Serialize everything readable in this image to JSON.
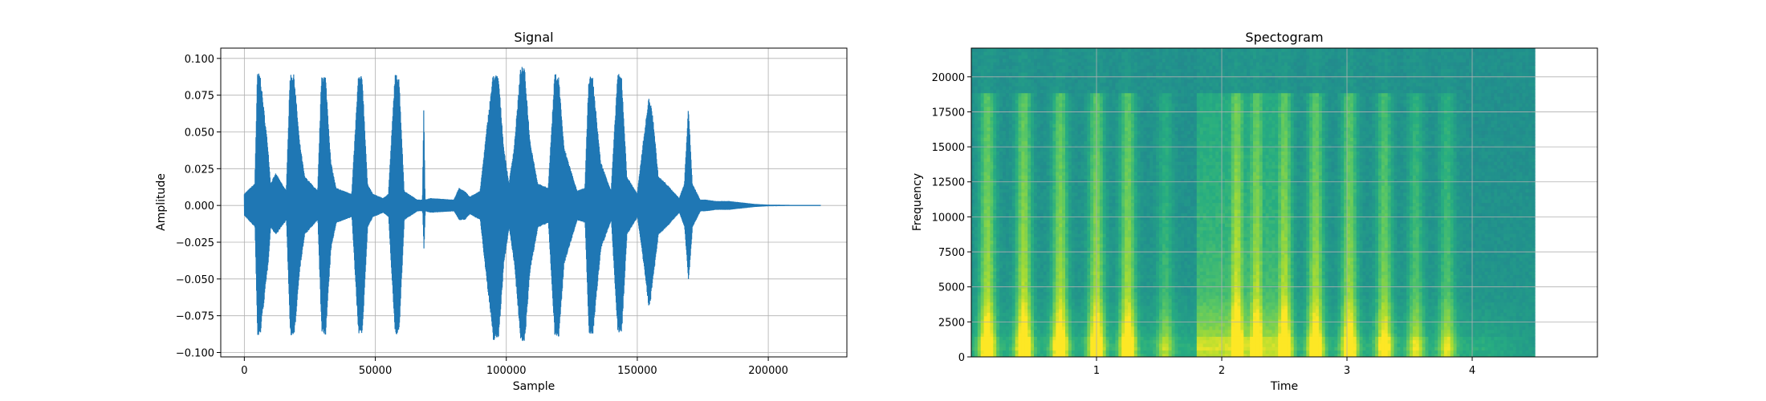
{
  "chart_data": [
    {
      "type": "line",
      "title": "Signal",
      "xlabel": "Sample",
      "ylabel": "Amplitude",
      "xlim": [
        -9000,
        230000
      ],
      "ylim": [
        -0.103,
        0.107
      ],
      "xticks": [
        0,
        50000,
        100000,
        150000,
        200000
      ],
      "xtick_labels": [
        "0",
        "50000",
        "100000",
        "150000",
        "200000"
      ],
      "yticks": [
        -0.1,
        -0.075,
        -0.05,
        -0.025,
        0.0,
        0.025,
        0.05,
        0.075,
        0.1
      ],
      "ytick_labels": [
        "−0.100",
        "−0.075",
        "−0.050",
        "−0.025",
        "0.000",
        "0.025",
        "0.050",
        "0.075",
        "0.100"
      ],
      "grid": true,
      "color": "#1f77b4",
      "series": [
        {
          "envelope": {
            "x": [
              0,
              4000,
              5000,
              6000,
              9000,
              10000,
              12000,
              16000,
              17500,
              19000,
              21000,
              23000,
              28000,
              29500,
              31000,
              33000,
              35000,
              41000,
              43500,
              45000,
              47000,
              49000,
              53000,
              55000,
              57500,
              59000,
              61000,
              66000,
              68000,
              68500,
              69000,
              71000,
              80000,
              82000,
              84000,
              86000,
              90000,
              93000,
              95000,
              97000,
              99000,
              101000,
              103000,
              105500,
              107000,
              109000,
              112000,
              116000,
              118500,
              120000,
              122000,
              127000,
              130000,
              131500,
              133000,
              136000,
              140000,
              142500,
              144000,
              146000,
              150000,
              152000,
              154500,
              156000,
              158000,
              161000,
              166000,
              168000,
              169500,
              171000,
              174000,
              176000,
              180000,
              185000,
              190000,
              195000,
              200000,
              210000,
              220000
            ],
            "top": [
              0.008,
              0.015,
              0.09,
              0.09,
              0.04,
              0.015,
              0.022,
              0.01,
              0.09,
              0.089,
              0.045,
              0.02,
              0.01,
              0.09,
              0.088,
              0.03,
              0.012,
              0.008,
              0.088,
              0.088,
              0.015,
              0.008,
              0.005,
              0.008,
              0.089,
              0.089,
              0.01,
              0.004,
              0.004,
              0.069,
              0.004,
              0.005,
              0.004,
              0.012,
              0.01,
              0.006,
              0.01,
              0.06,
              0.09,
              0.088,
              0.04,
              0.015,
              0.04,
              0.095,
              0.093,
              0.045,
              0.015,
              0.012,
              0.09,
              0.088,
              0.04,
              0.01,
              0.012,
              0.088,
              0.087,
              0.03,
              0.01,
              0.09,
              0.088,
              0.02,
              0.008,
              0.04,
              0.075,
              0.06,
              0.02,
              0.015,
              0.005,
              0.015,
              0.068,
              0.015,
              0.004,
              0.004,
              0.003,
              0.003,
              0.002,
              0.001,
              0.0005,
              0.0003,
              0.0003
            ],
            "bottom": [
              -0.007,
              -0.015,
              -0.09,
              -0.089,
              -0.04,
              -0.015,
              -0.02,
              -0.01,
              -0.088,
              -0.09,
              -0.045,
              -0.02,
              -0.01,
              -0.088,
              -0.088,
              -0.03,
              -0.012,
              -0.008,
              -0.087,
              -0.087,
              -0.015,
              -0.008,
              -0.005,
              -0.008,
              -0.088,
              -0.088,
              -0.01,
              -0.004,
              -0.004,
              -0.031,
              -0.004,
              -0.005,
              -0.004,
              -0.01,
              -0.01,
              -0.006,
              -0.01,
              -0.06,
              -0.092,
              -0.09,
              -0.04,
              -0.015,
              -0.04,
              -0.093,
              -0.092,
              -0.045,
              -0.015,
              -0.012,
              -0.09,
              -0.09,
              -0.04,
              -0.01,
              -0.012,
              -0.087,
              -0.088,
              -0.03,
              -0.01,
              -0.087,
              -0.086,
              -0.02,
              -0.008,
              -0.035,
              -0.072,
              -0.05,
              -0.02,
              -0.015,
              -0.005,
              -0.015,
              -0.052,
              -0.015,
              -0.004,
              -0.004,
              -0.003,
              -0.003,
              -0.002,
              -0.001,
              -0.0005,
              -0.0003,
              -0.0003
            ]
          }
        }
      ]
    },
    {
      "type": "heatmap",
      "title": "Spectogram",
      "xlabel": "Time",
      "ylabel": "Frequency",
      "xlim": [
        0.0,
        5.0
      ],
      "ylim": [
        0,
        22050
      ],
      "data_extent_x": [
        0.0,
        4.5
      ],
      "xticks": [
        1,
        2,
        3,
        4
      ],
      "xtick_labels": [
        "1",
        "2",
        "3",
        "4"
      ],
      "yticks": [
        0,
        2500,
        5000,
        7500,
        10000,
        12500,
        15000,
        17500,
        20000
      ],
      "ytick_labels": [
        "0",
        "2500",
        "5000",
        "7500",
        "10000",
        "12500",
        "15000",
        "17500",
        "20000"
      ],
      "grid": true,
      "colormap": "viridis",
      "bright_streaks": [
        {
          "time": 0.13,
          "strength": 0.85
        },
        {
          "time": 0.42,
          "strength": 0.9
        },
        {
          "time": 0.71,
          "strength": 0.85
        },
        {
          "time": 1.0,
          "strength": 0.85
        },
        {
          "time": 1.25,
          "strength": 0.85
        },
        {
          "time": 1.55,
          "strength": 0.4
        },
        {
          "time": 2.12,
          "strength": 1.0
        },
        {
          "time": 2.28,
          "strength": 0.9
        },
        {
          "time": 2.5,
          "strength": 0.9
        },
        {
          "time": 2.75,
          "strength": 0.85
        },
        {
          "time": 3.02,
          "strength": 0.8
        },
        {
          "time": 3.3,
          "strength": 0.7
        },
        {
          "time": 3.55,
          "strength": 0.5
        },
        {
          "time": 3.8,
          "strength": 0.5
        }
      ],
      "broad_bursts": [
        {
          "start": 1.8,
          "end": 2.45,
          "strength": 0.55
        }
      ]
    }
  ]
}
